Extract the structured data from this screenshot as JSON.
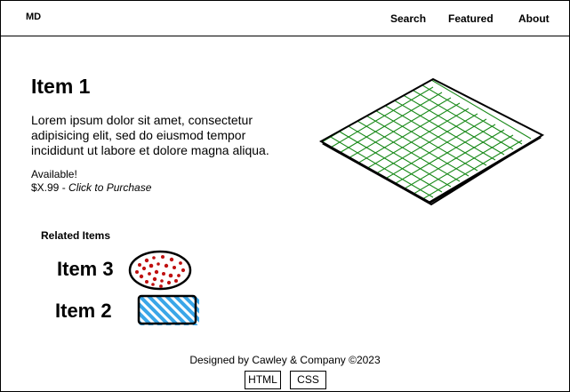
{
  "nav": {
    "logo": "MD",
    "links": [
      "Search",
      "Featured",
      "About"
    ]
  },
  "product": {
    "title": "Item 1",
    "description": "Lorem ipsum dolor sit amet, consectetur adipisicing elit, sed do eiusmod tempor incididunt ut labore et dolore magna aliqua.",
    "availability": "Available!",
    "price": "$X.99",
    "price_separator": " - ",
    "purchase_label": "Click to Purchase",
    "image_icon": "green-grid-diamond",
    "image_color": "#1a8a1a"
  },
  "related": {
    "heading": "Related Items",
    "items": [
      {
        "name": "Item 3",
        "icon": "red-dotted-oval",
        "color": "#c01010"
      },
      {
        "name": "Item 2",
        "icon": "blue-striped-rectangle",
        "color": "#3aa6e8"
      }
    ]
  },
  "footer": {
    "credit": "Designed by Cawley & Company ©2023",
    "buttons": [
      "HTML",
      "CSS"
    ]
  }
}
